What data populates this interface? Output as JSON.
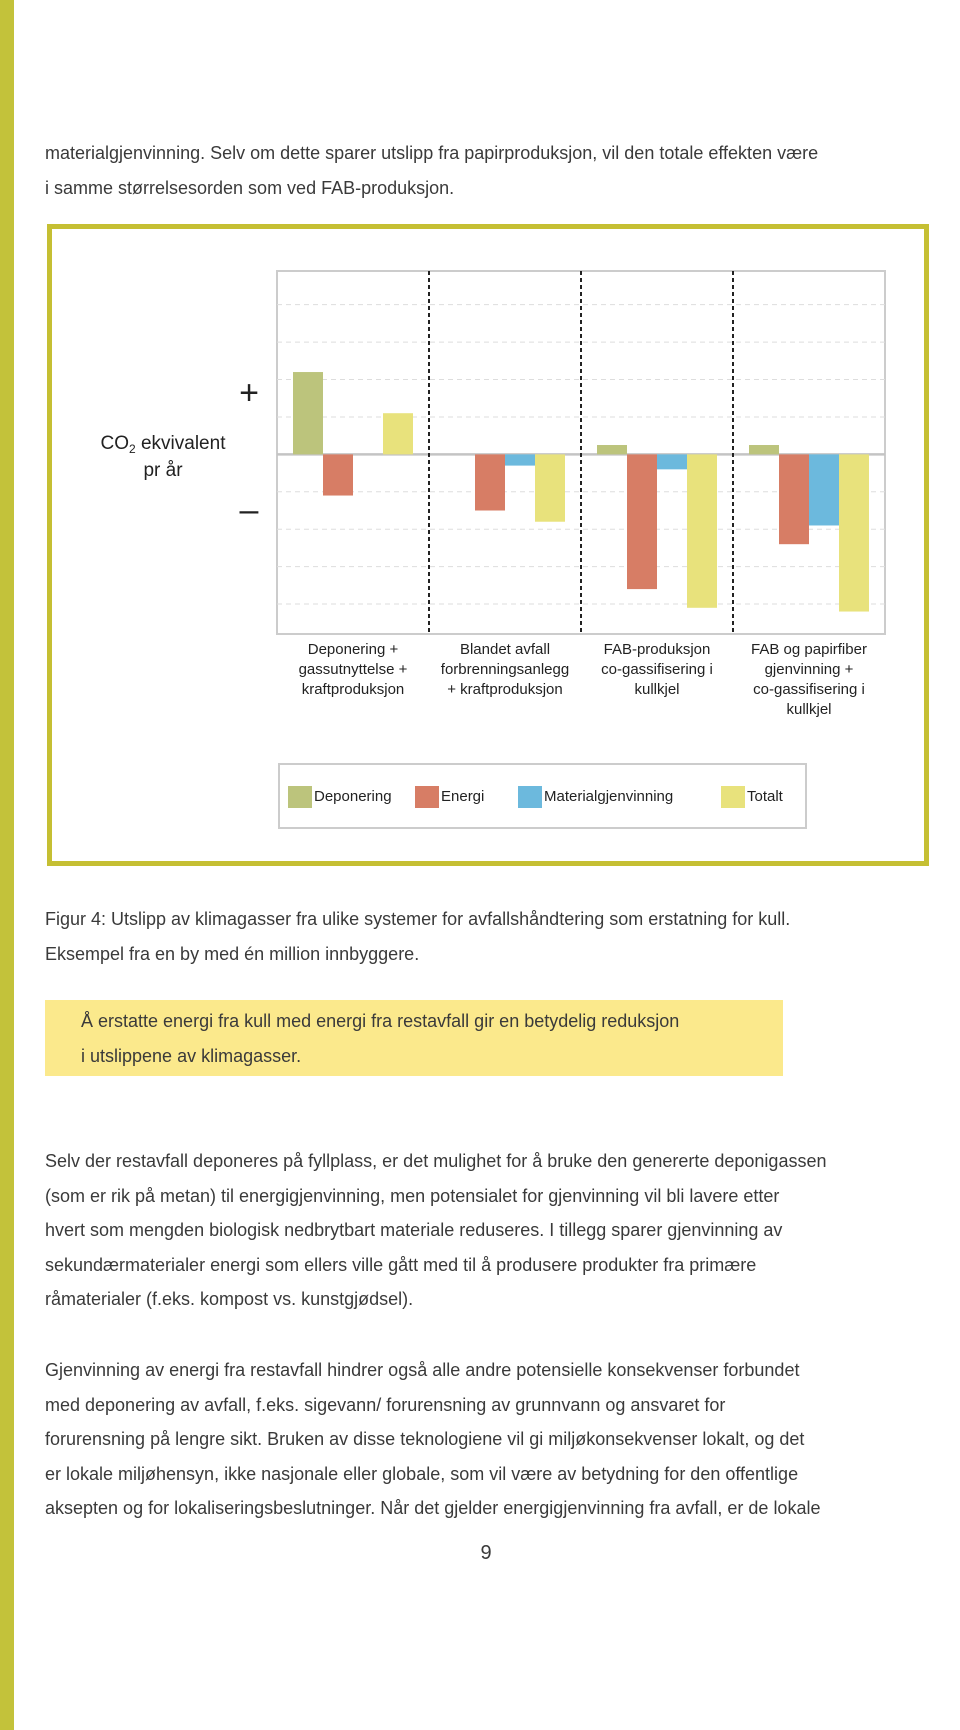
{
  "intro": {
    "lines": [
      "materialgjenvinning. Selv om dette sparer utslipp fra papirproduksjon, vil den totale effekten være",
      "i samme størrelsesorden som ved FAB-produksjon."
    ]
  },
  "chart_data": {
    "type": "bar",
    "ylabel": {
      "main": "CO",
      "subscript": "2",
      "rest": " ekvivalent",
      "line2": "pr år"
    },
    "plus_marker": "+",
    "minus_marker": "–",
    "categories": [
      [
        "Deponering +",
        "gassutnyttelse +",
        "kraftproduksjon"
      ],
      [
        "Blandet avfall",
        "forbrenningsanlegg",
        "+ kraftproduksjon"
      ],
      [
        "FAB-produksjon",
        "co-gassifisering i",
        "kullkjel"
      ],
      [
        "FAB og papirfiber",
        "gjenvinning +",
        "co-gassifisering i",
        "kullkjel"
      ]
    ],
    "series": [
      {
        "name": "Deponering",
        "color": "#bcc47c",
        "values": [
          2.2,
          0,
          0.25,
          0.25
        ]
      },
      {
        "name": "Energi",
        "color": "#d77d65",
        "values": [
          -1.1,
          -1.5,
          -3.6,
          -2.4
        ]
      },
      {
        "name": "Materialgjenvinning",
        "color": "#6cb9dd",
        "values": [
          0,
          -0.3,
          -0.4,
          -1.9
        ]
      },
      {
        "name": "Totalt",
        "color": "#e8e27c",
        "values": [
          1.1,
          -1.8,
          -4.1,
          -4.2
        ]
      }
    ],
    "ylim": [
      -4.8,
      4.9
    ],
    "grid_values": [
      -4,
      -3,
      -2,
      -1,
      1,
      2,
      3,
      4
    ],
    "grid": true
  },
  "caption": {
    "lines": [
      "Figur 4:  Utslipp av klimagasser fra ulike systemer for avfallshåndtering som erstatning for kull.",
      "Eksempel fra en by med én million innbyggere."
    ]
  },
  "highlight": {
    "lines": [
      "Å erstatte energi fra kull med energi fra restavfall gir en betydelig reduksjon",
      "i utslippene av klimagasser."
    ]
  },
  "paragraphs": [
    {
      "lines": [
        "Selv der restavfall deponeres på fyllplass, er det mulighet for å bruke den genererte deponigassen",
        "(som er rik på metan) til energigjenvinning, men potensialet for gjenvinning vil bli lavere etter",
        "hvert som mengden biologisk nedbrytbart materiale reduseres. I tillegg sparer gjenvinning av",
        "sekundærmaterialer energi som ellers ville gått med til å produsere produkter fra primære",
        "råmaterialer (f.eks. kompost vs. kunstgjødsel)."
      ]
    },
    {
      "lines": [
        "Gjenvinning av energi fra restavfall hindrer også alle andre potensielle konsekvenser forbundet",
        "med deponering av avfall, f.eks. sigevann/ forurensning av grunnvann og ansvaret for",
        "forurensning på lengre sikt. Bruken av disse teknologiene vil gi miljøkonsekvenser lokalt, og det",
        "er lokale miljøhensyn, ikke nasjonale eller globale, som vil være av betydning for den offentlige",
        "aksepten og for lokaliseringsbeslutninger. Når det gjelder energigjenvinning fra avfall, er de lokale"
      ]
    }
  ],
  "page_number": "9"
}
